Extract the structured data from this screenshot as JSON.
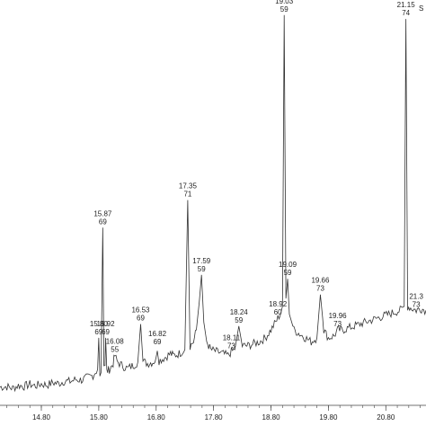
{
  "chart_data": {
    "type": "line",
    "title": "",
    "xlabel": "",
    "ylabel": "",
    "corner_text": "S",
    "xlim": [
      14.08,
      21.5
    ],
    "ylim": [
      0,
      100
    ],
    "x_ticks": [
      "14.80",
      "15.80",
      "16.80",
      "17.80",
      "18.80",
      "19.80",
      "20.80"
    ],
    "x_tick_values": [
      14.8,
      15.8,
      16.8,
      17.8,
      18.8,
      19.8,
      20.8
    ],
    "series": [
      {
        "color": "#333333",
        "points": [
          [
            14.08,
            3.5
          ],
          [
            14.2,
            3.6
          ],
          [
            14.3,
            3.2
          ],
          [
            14.4,
            3.9
          ],
          [
            14.5,
            3.7
          ],
          [
            14.6,
            4.2
          ],
          [
            14.7,
            3.8
          ],
          [
            14.8,
            4.3
          ],
          [
            14.9,
            4.0
          ],
          [
            15.0,
            4.6
          ],
          [
            15.1,
            4.4
          ],
          [
            15.2,
            5.0
          ],
          [
            15.3,
            4.9
          ],
          [
            15.4,
            5.4
          ],
          [
            15.5,
            5.3
          ],
          [
            15.6,
            5.9
          ],
          [
            15.7,
            6.5
          ],
          [
            15.78,
            8.0
          ],
          [
            15.8,
            16.0
          ],
          [
            15.82,
            6.5
          ],
          [
            15.84,
            7.2
          ],
          [
            15.87,
            44.0
          ],
          [
            15.89,
            8.5
          ],
          [
            15.91,
            9.0
          ],
          [
            15.92,
            16.0
          ],
          [
            15.94,
            7.5
          ],
          [
            15.97,
            7.8
          ],
          [
            16.0,
            8.2
          ],
          [
            16.05,
            9.5
          ],
          [
            16.08,
            11.5
          ],
          [
            16.12,
            10.0
          ],
          [
            16.2,
            9.0
          ],
          [
            16.3,
            8.2
          ],
          [
            16.4,
            9.0
          ],
          [
            16.48,
            9.8
          ],
          [
            16.53,
            19.5
          ],
          [
            16.57,
            10.0
          ],
          [
            16.65,
            9.5
          ],
          [
            16.74,
            9.8
          ],
          [
            16.8,
            10.5
          ],
          [
            16.82,
            13.5
          ],
          [
            16.85,
            10.2
          ],
          [
            16.95,
            11.0
          ],
          [
            17.05,
            12.0
          ],
          [
            17.1,
            11.5
          ],
          [
            17.2,
            12.0
          ],
          [
            17.3,
            13.0
          ],
          [
            17.35,
            51.0
          ],
          [
            17.39,
            14.0
          ],
          [
            17.45,
            15.0
          ],
          [
            17.5,
            18.0
          ],
          [
            17.55,
            25.0
          ],
          [
            17.59,
            32.0
          ],
          [
            17.63,
            20.0
          ],
          [
            17.68,
            15.0
          ],
          [
            17.75,
            13.0
          ],
          [
            17.85,
            12.5
          ],
          [
            17.95,
            12.0
          ],
          [
            18.05,
            11.5
          ],
          [
            18.11,
            12.5
          ],
          [
            18.17,
            13.0
          ],
          [
            18.24,
            19.0
          ],
          [
            18.3,
            14.0
          ],
          [
            18.4,
            14.0
          ],
          [
            18.5,
            14.5
          ],
          [
            18.6,
            15.0
          ],
          [
            18.7,
            16.0
          ],
          [
            18.8,
            18.0
          ],
          [
            18.88,
            20.0
          ],
          [
            18.92,
            21.0
          ],
          [
            18.96,
            22.0
          ],
          [
            19.0,
            24.0
          ],
          [
            19.03,
            98.0
          ],
          [
            19.06,
            26.0
          ],
          [
            19.09,
            31.0
          ],
          [
            19.12,
            22.0
          ],
          [
            19.2,
            18.0
          ],
          [
            19.3,
            17.0
          ],
          [
            19.4,
            16.0
          ],
          [
            19.5,
            15.0
          ],
          [
            19.6,
            16.0
          ],
          [
            19.66,
            27.0
          ],
          [
            19.72,
            18.0
          ],
          [
            19.8,
            16.0
          ],
          [
            19.9,
            16.5
          ],
          [
            19.96,
            18.0
          ],
          [
            20.05,
            18.0
          ],
          [
            20.15,
            18.5
          ],
          [
            20.25,
            19.0
          ],
          [
            20.35,
            19.5
          ],
          [
            20.45,
            20.0
          ],
          [
            20.55,
            20.5
          ],
          [
            20.65,
            21.0
          ],
          [
            20.75,
            21.5
          ],
          [
            20.85,
            22.0
          ],
          [
            20.95,
            22.5
          ],
          [
            21.05,
            23.0
          ],
          [
            21.12,
            24.0
          ],
          [
            21.15,
            97.0
          ],
          [
            21.18,
            24.0
          ],
          [
            21.25,
            23.5
          ],
          [
            21.33,
            23.0
          ],
          [
            21.4,
            23.5
          ],
          [
            21.5,
            23.0
          ]
        ]
      }
    ],
    "annotations": [
      {
        "x": 15.8,
        "y": 16.0,
        "lines": [
          "15.80",
          "69"
        ]
      },
      {
        "x": 15.87,
        "y": 44.0,
        "lines": [
          "15.87",
          "69"
        ]
      },
      {
        "x": 15.92,
        "y": 16.0,
        "lines": [
          "15.92",
          "69"
        ]
      },
      {
        "x": 16.08,
        "y": 11.5,
        "lines": [
          "16.08",
          "55"
        ]
      },
      {
        "x": 16.53,
        "y": 19.5,
        "lines": [
          "16.53",
          "69"
        ]
      },
      {
        "x": 16.82,
        "y": 13.5,
        "lines": [
          "16.82",
          "69"
        ]
      },
      {
        "x": 17.35,
        "y": 51.0,
        "lines": [
          "17.35",
          "71"
        ]
      },
      {
        "x": 17.59,
        "y": 32.0,
        "lines": [
          "17.59",
          "59"
        ]
      },
      {
        "x": 18.11,
        "y": 12.5,
        "lines": [
          "18.11",
          "73"
        ]
      },
      {
        "x": 18.24,
        "y": 19.0,
        "lines": [
          "18.24",
          "59"
        ]
      },
      {
        "x": 18.92,
        "y": 21.0,
        "lines": [
          "18.92",
          "60"
        ]
      },
      {
        "x": 19.03,
        "y": 98.0,
        "lines": [
          "19.03",
          "59"
        ]
      },
      {
        "x": 19.09,
        "y": 31.0,
        "lines": [
          "19.09",
          "59"
        ]
      },
      {
        "x": 19.66,
        "y": 27.0,
        "lines": [
          "19.66",
          "73"
        ]
      },
      {
        "x": 19.96,
        "y": 18.0,
        "lines": [
          "19.96",
          "73"
        ]
      },
      {
        "x": 21.15,
        "y": 97.0,
        "lines": [
          "21.15",
          "74"
        ]
      },
      {
        "x": 21.33,
        "y": 23.0,
        "lines": [
          "21.3",
          "73"
        ]
      }
    ]
  }
}
